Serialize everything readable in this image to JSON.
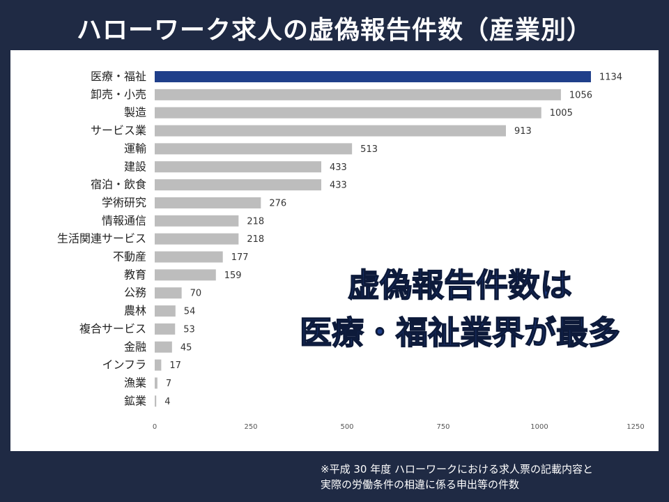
{
  "title": "ハローワーク求人の虚偽報告件数（産業別）",
  "callout": {
    "line1": "虚偽報告件数は",
    "line2": "医療・福祉業界が最多"
  },
  "footnote": {
    "line1": "※平成 30 年度 ハローワークにおける求人票の記載内容と",
    "line2": "実際の労働条件の相違に係る申出等の件数"
  },
  "colors": {
    "highlight": "#1f3f8a",
    "bar": "#bdbdbd",
    "background": "#1f2a44"
  },
  "chart_data": {
    "type": "bar",
    "orientation": "horizontal",
    "categories": [
      "医療・福祉",
      "卸売・小売",
      "製造",
      "サービス業",
      "運輸",
      "建設",
      "宿泊・飲食",
      "学術研究",
      "情報通信",
      "生活関連サービス",
      "不動産",
      "教育",
      "公務",
      "農林",
      "複合サービス",
      "金融",
      "インフラ",
      "漁業",
      "鉱業"
    ],
    "values": [
      1134,
      1056,
      1005,
      913,
      513,
      433,
      433,
      276,
      218,
      218,
      177,
      159,
      70,
      54,
      53,
      45,
      17,
      7,
      4
    ],
    "highlight_index": 0,
    "xlim": [
      0,
      1250
    ],
    "xticks": [
      0,
      250,
      500,
      750,
      1000,
      1250
    ],
    "grid": false,
    "data_labels": true
  }
}
